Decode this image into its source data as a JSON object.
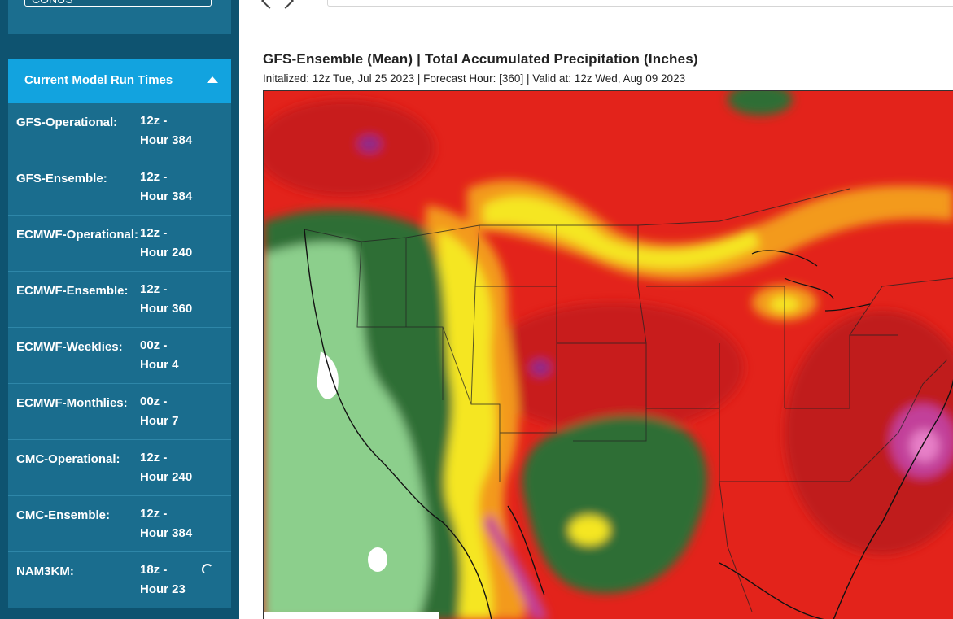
{
  "sidebar": {
    "region_value": "CONUS",
    "runtimes_title": "Current Model Run Times",
    "models": [
      {
        "name": "GFS-Operational:",
        "run": "12z -",
        "hour": "Hour 384"
      },
      {
        "name": "GFS-Ensemble:",
        "run": "12z -",
        "hour": "Hour 384"
      },
      {
        "name": "ECMWF-Operational:",
        "run": "12z -",
        "hour": "Hour 240"
      },
      {
        "name": "ECMWF-Ensemble:",
        "run": "12z -",
        "hour": "Hour 360"
      },
      {
        "name": "ECMWF-Weeklies:",
        "run": "00z -",
        "hour": "Hour 4"
      },
      {
        "name": "ECMWF-Monthlies:",
        "run": "00z -",
        "hour": "Hour 7"
      },
      {
        "name": "CMC-Operational:",
        "run": "12z -",
        "hour": "Hour 240"
      },
      {
        "name": "CMC-Ensemble:",
        "run": "12z -",
        "hour": "Hour 384"
      },
      {
        "name": "NAM3KM:",
        "run": "18z -",
        "hour": "Hour 23"
      }
    ]
  },
  "map": {
    "title": "GFS-Ensemble (Mean) | Total Accumulated Precipitation (Inches)",
    "subtitle": "Initalized: 12z Tue, Jul 25 2023  |  Forecast Hour: [360]  |  Valid at: 12z Wed, Aug 09 2023"
  },
  "colors": {
    "sidebar_bg": "#0e5370",
    "row_bg": "#1a6d8e",
    "header_bg": "#12a3df",
    "precip_light_green": "#8ccf8c",
    "precip_dark_green": "#2e6e35",
    "precip_yellow": "#f5e623",
    "precip_orange": "#f39a1c",
    "precip_red": "#e3231b",
    "precip_dark_red": "#b81c1c",
    "precip_magenta": "#c2409a"
  },
  "icons": [
    "chevron-up-icon",
    "spinner-icon",
    "chevron-left-icon",
    "chevron-right-icon"
  ]
}
